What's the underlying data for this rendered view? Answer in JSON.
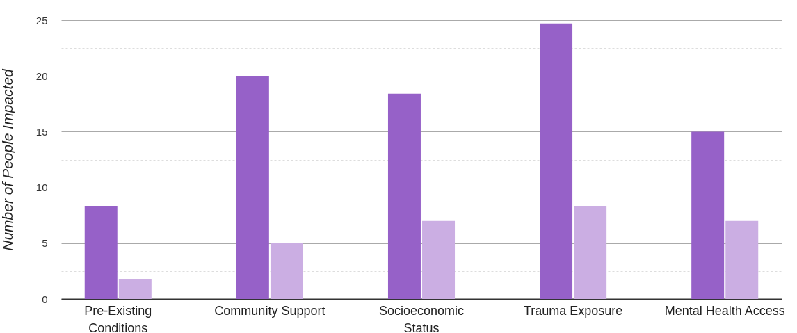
{
  "chart_data": {
    "type": "bar",
    "ylabel": "Number of People Impacted",
    "categories": [
      "Pre-Existing Conditions",
      "Community Support",
      "Socioeconomic Status",
      "Trauma Exposure",
      "Mental Health Access"
    ],
    "series": [
      {
        "color": "#9661c8",
        "values": [
          8.3,
          20,
          18.4,
          24.7,
          15
        ]
      },
      {
        "color": "#cbaee3",
        "values": [
          1.8,
          5,
          7,
          8.3,
          7
        ]
      }
    ],
    "ylim": [
      0,
      25
    ],
    "yticks": [
      0,
      {
        "value": 2.5,
        "label": null
      },
      5,
      {
        "value": 7.5,
        "label": null
      },
      10,
      {
        "value": 12.5,
        "label": null
      },
      15,
      {
        "value": 17.5,
        "label": null
      },
      20,
      {
        "value": 22.5,
        "label": null
      },
      25
    ],
    "grid": "y"
  }
}
